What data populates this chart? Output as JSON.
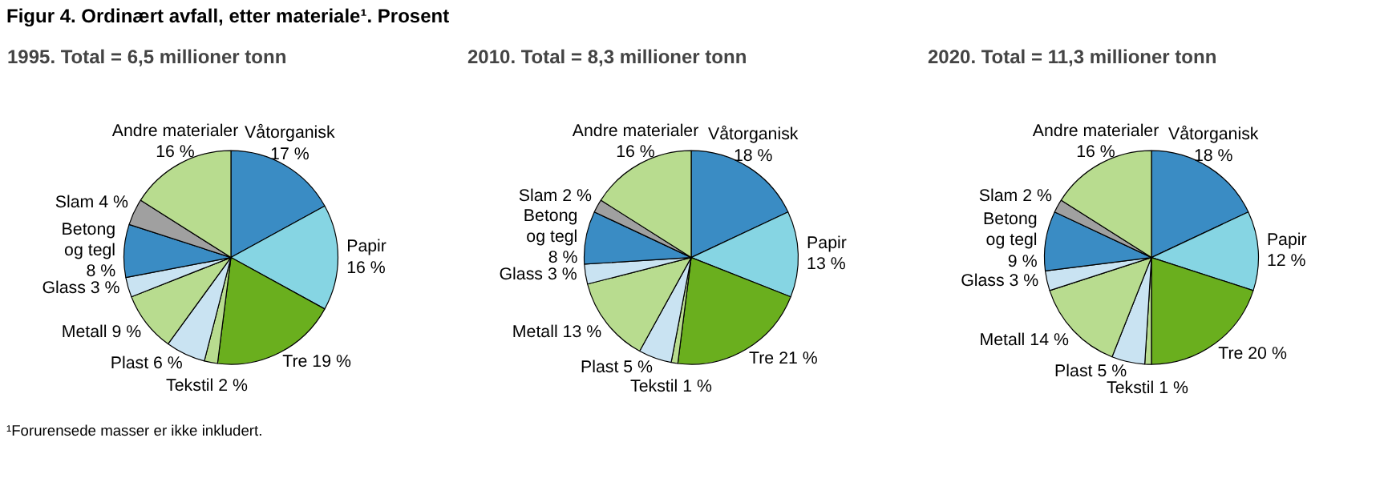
{
  "chart_data": [
    {
      "type": "pie",
      "title": "1995. Total = 6,5 millioner tonn",
      "annotations": [
        "Figur 4. Ordinært avfall, etter materiale¹. Prosent",
        "¹Forurensede masser er ikke inkludert."
      ],
      "categories": [
        "Våtorganisk",
        "Papir",
        "Tre",
        "Tekstil",
        "Plast",
        "Metall",
        "Glass",
        "Betong og tegl",
        "Slam",
        "Andre materialer"
      ],
      "values": [
        17,
        16,
        19,
        2,
        6,
        9,
        3,
        8,
        4,
        16
      ],
      "value_labels": [
        "17 %",
        "16 %",
        "19 %",
        "2 %",
        "6 %",
        "9 %",
        "3 %",
        "8 %",
        "4 %",
        "16 %"
      ],
      "colors": [
        "#3a8cc4",
        "#86d5e3",
        "#6aaf1e",
        "#b8dc8f",
        "#c9e3f2",
        "#b8dc8f",
        "#c9e3f2",
        "#3a8cc4",
        "#a0a0a0",
        "#b8dc8f"
      ]
    },
    {
      "type": "pie",
      "title": "2010. Total = 8,3 millioner tonn",
      "categories": [
        "Våtorganisk",
        "Papir",
        "Tre",
        "Tekstil",
        "Plast",
        "Metall",
        "Glass",
        "Betong og tegl",
        "Slam",
        "Andre materialer"
      ],
      "values": [
        18,
        13,
        21,
        1,
        5,
        13,
        3,
        8,
        2,
        16
      ],
      "value_labels": [
        "18 %",
        "13 %",
        "21 %",
        "1 %",
        "5 %",
        "13 %",
        "3 %",
        "8 %",
        "2 %",
        "16 %"
      ],
      "colors": [
        "#3a8cc4",
        "#86d5e3",
        "#6aaf1e",
        "#b8dc8f",
        "#c9e3f2",
        "#b8dc8f",
        "#c9e3f2",
        "#3a8cc4",
        "#a0a0a0",
        "#b8dc8f"
      ]
    },
    {
      "type": "pie",
      "title": "2020. Total = 11,3 millioner tonn",
      "categories": [
        "Våtorganisk",
        "Papir",
        "Tre",
        "Tekstil",
        "Plast",
        "Metall",
        "Glass",
        "Betong og tegl",
        "Slam",
        "Andre materialer"
      ],
      "values": [
        18,
        12,
        20,
        1,
        5,
        14,
        3,
        9,
        2,
        16
      ],
      "value_labels": [
        "18 %",
        "12 %",
        "20 %",
        "1 %",
        "5 %",
        "14 %",
        "3 %",
        "9 %",
        "2 %",
        "16 %"
      ],
      "colors": [
        "#3a8cc4",
        "#86d5e3",
        "#6aaf1e",
        "#b8dc8f",
        "#c9e3f2",
        "#b8dc8f",
        "#c9e3f2",
        "#3a8cc4",
        "#a0a0a0",
        "#b8dc8f"
      ]
    }
  ]
}
